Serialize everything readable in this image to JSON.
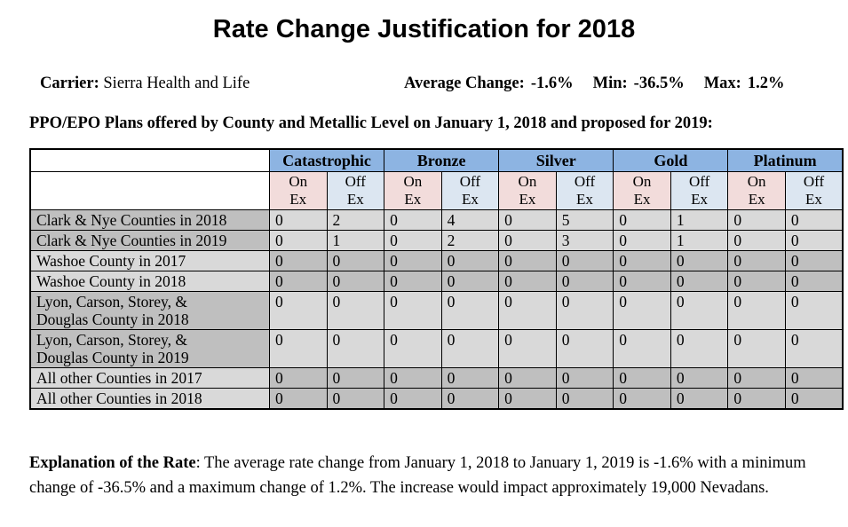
{
  "doc": {
    "title": "Rate Change Justification for 2018",
    "carrier": {
      "label": "Carrier:",
      "value": "Sierra Health and Life"
    },
    "stats": {
      "average_label": "Average Change:",
      "average_value": "-1.6%",
      "min_label": "Min:",
      "min_value": "-36.5%",
      "max_label": "Max:",
      "max_value": "1.2%"
    },
    "table_caption": "PPO/EPO Plans offered by County and Metallic Level on January 1, 2018 and proposed for 2019:",
    "explanation": {
      "label": "Explanation of the Rate",
      "body": ":  The average rate change from January 1, 2018 to January 1, 2019 is -1.6% with a minimum change of -36.5% and a maximum change of 1.2%.  The increase would impact approximately 19,000 Nevadans."
    }
  },
  "table": {
    "metal_levels": [
      "Catastrophic",
      "Bronze",
      "Silver",
      "Gold",
      "Platinum"
    ],
    "exchange_subheaders": [
      "On Ex",
      "Off Ex"
    ],
    "rows": [
      {
        "label_lines": [
          "Clark & Nye Counties in 2018"
        ],
        "values": [
          "0",
          "2",
          "0",
          "4",
          "0",
          "5",
          "0",
          "1",
          "0",
          "0"
        ],
        "shade": "a"
      },
      {
        "label_lines": [
          "Clark & Nye Counties in 2019"
        ],
        "values": [
          "0",
          "1",
          "0",
          "2",
          "0",
          "3",
          "0",
          "1",
          "0",
          "0"
        ],
        "shade": "a"
      },
      {
        "label_lines": [
          "Washoe County in 2017"
        ],
        "values": [
          "0",
          "0",
          "0",
          "0",
          "0",
          "0",
          "0",
          "0",
          "0",
          "0"
        ],
        "shade": "b"
      },
      {
        "label_lines": [
          "Washoe County in 2018"
        ],
        "values": [
          "0",
          "0",
          "0",
          "0",
          "0",
          "0",
          "0",
          "0",
          "0",
          "0"
        ],
        "shade": "b"
      },
      {
        "label_lines": [
          "Lyon, Carson, Storey, &",
          "Douglas County in 2018"
        ],
        "values": [
          "0",
          "0",
          "0",
          "0",
          "0",
          "0",
          "0",
          "0",
          "0",
          "0"
        ],
        "shade": "a"
      },
      {
        "label_lines": [
          "Lyon, Carson, Storey, &",
          "Douglas County in 2019"
        ],
        "values": [
          "0",
          "0",
          "0",
          "0",
          "0",
          "0",
          "0",
          "0",
          "0",
          "0"
        ],
        "shade": "a"
      },
      {
        "label_lines": [
          "All other Counties in 2017"
        ],
        "values": [
          "0",
          "0",
          "0",
          "0",
          "0",
          "0",
          "0",
          "0",
          "0",
          "0"
        ],
        "shade": "b"
      },
      {
        "label_lines": [
          "All other Counties in 2018"
        ],
        "values": [
          "0",
          "0",
          "0",
          "0",
          "0",
          "0",
          "0",
          "0",
          "0",
          "0"
        ],
        "shade": "b"
      }
    ]
  },
  "colors": {
    "header_blue": "#8DB4E2",
    "on_exchange_pink": "#F2DCDB",
    "off_exchange_blue": "#DCE6F1",
    "row_gray_dark": "#BFBFBF",
    "row_gray_light": "#D9D9D9",
    "border_black": "#000000",
    "background_white": "#FFFFFF"
  }
}
